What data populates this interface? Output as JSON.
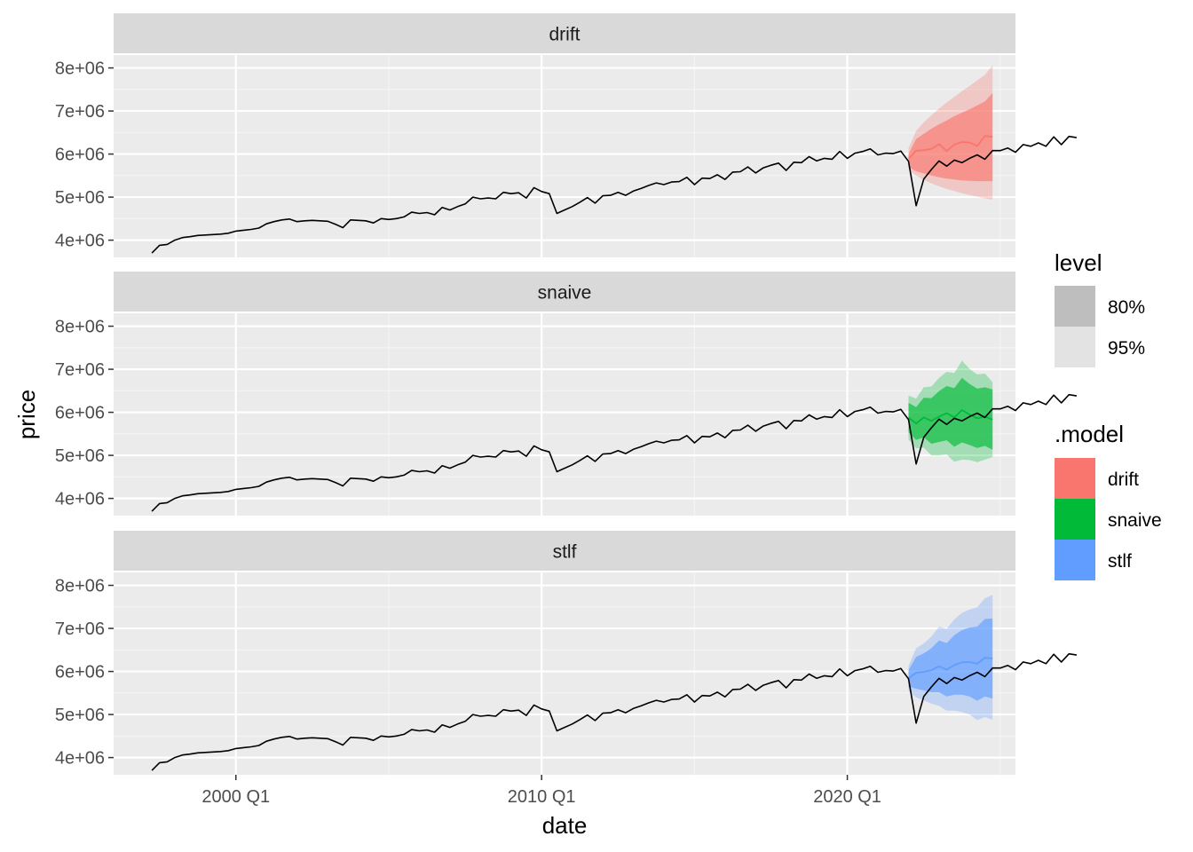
{
  "chart_data": {
    "type": "line",
    "xlabel": "date",
    "ylabel": "price",
    "x_ticks": [
      "2000 Q1",
      "2010 Q1",
      "2020 Q1"
    ],
    "y_ticks": [
      "4e+06",
      "5e+06",
      "6e+06",
      "7e+06",
      "8e+06"
    ],
    "ylim": [
      3600000,
      8300000
    ],
    "xlim": [
      "1996 Q1",
      "2025 Q3"
    ],
    "grid": true,
    "legend_position": "right",
    "panels": [
      {
        "name": "drift",
        "color": "#F8766D"
      },
      {
        "name": "snaive",
        "color": "#00BA38"
      },
      {
        "name": "stlf",
        "color": "#619CFF"
      }
    ],
    "legend": {
      "level": {
        "title": "level",
        "entries": [
          {
            "label": "80%",
            "color": "#bebebe"
          },
          {
            "label": "95%",
            "color": "#e3e3e3"
          }
        ]
      },
      "model": {
        "title": ".model",
        "entries": [
          {
            "label": "drift",
            "color": "#F8766D"
          },
          {
            "label": "snaive",
            "color": "#00BA38"
          },
          {
            "label": "stlf",
            "color": "#619CFF"
          }
        ]
      }
    },
    "series_start": "1997 Q2",
    "history": [
      3700000,
      3880000,
      3900000,
      4000000,
      4060000,
      4080000,
      4110000,
      4120000,
      4130000,
      4140000,
      4160000,
      4210000,
      4230000,
      4250000,
      4280000,
      4380000,
      4430000,
      4470000,
      4490000,
      4430000,
      4450000,
      4460000,
      4450000,
      4440000,
      4370000,
      4290000,
      4470000,
      4460000,
      4450000,
      4400000,
      4500000,
      4480000,
      4500000,
      4540000,
      4650000,
      4620000,
      4640000,
      4590000,
      4760000,
      4700000,
      4780000,
      4840000,
      5000000,
      4960000,
      4980000,
      4960000,
      5110000,
      5080000,
      5100000,
      4980000,
      5220000,
      5130000,
      5080000,
      4620000,
      4700000,
      4780000,
      4880000,
      4990000,
      4860000,
      5030000,
      5040000,
      5110000,
      5040000,
      5140000,
      5200000,
      5270000,
      5330000,
      5290000,
      5350000,
      5360000,
      5460000,
      5290000,
      5440000,
      5430000,
      5520000,
      5410000,
      5580000,
      5590000,
      5700000,
      5560000,
      5680000,
      5740000,
      5790000,
      5620000,
      5810000,
      5800000,
      5940000,
      5840000,
      5900000,
      5880000,
      6060000,
      5900000,
      6020000,
      6060000,
      6120000,
      5980000,
      6020000,
      6010000,
      6070000,
      5830000,
      4800000,
      5420000,
      5640000,
      5840000,
      5720000,
      5860000,
      5800000,
      5900000,
      5980000,
      5880000,
      6080000,
      6080000,
      6140000,
      6040000,
      6220000,
      6180000,
      6260000,
      6180000,
      6400000,
      6220000,
      6410000,
      6380000
    ],
    "forecasts": [
      {
        "name": "drift",
        "mean": [
          5890000,
          6080000,
          6090000,
          6120000,
          6230000,
          6070000,
          6220000,
          6280000,
          6270000,
          6190000,
          6420000,
          6400000
        ],
        "lo80": [
          5700000,
          5600000,
          5550000,
          5500000,
          5460000,
          5430000,
          5410000,
          5390000,
          5380000,
          5370000,
          5370000,
          5370000
        ],
        "hi80": [
          6000000,
          6350000,
          6470000,
          6590000,
          6690000,
          6780000,
          6880000,
          6960000,
          7040000,
          7130000,
          7220000,
          7420000
        ],
        "lo95": [
          5650000,
          5500000,
          5400000,
          5320000,
          5250000,
          5190000,
          5140000,
          5090000,
          5050000,
          5010000,
          4970000,
          4940000
        ],
        "hi95": [
          6130000,
          6540000,
          6740000,
          6900000,
          7060000,
          7200000,
          7330000,
          7460000,
          7580000,
          7710000,
          7840000,
          8060000
        ]
      },
      {
        "name": "snaive",
        "mean": [
          5880000,
          5740000,
          5880000,
          5800000,
          5900000,
          5980000,
          5880000,
          6050000,
          5950000,
          5860000,
          5900000,
          5830000
        ],
        "lo80": [
          5540000,
          5360000,
          5420000,
          5270000,
          5310000,
          5350000,
          5200000,
          5300000,
          5240000,
          5170000,
          5220000,
          5130000
        ],
        "hi80": [
          6220000,
          6120000,
          6340000,
          6330000,
          6490000,
          6610000,
          6560000,
          6800000,
          6660000,
          6550000,
          6580000,
          6530000
        ],
        "lo95": [
          5370000,
          5160000,
          5180000,
          5000000,
          5000000,
          5020000,
          4850000,
          4900000,
          4890000,
          4840000,
          4900000,
          4960000
        ],
        "hi95": [
          6390000,
          6320000,
          6580000,
          6600000,
          6800000,
          6940000,
          6910000,
          7200000,
          7010000,
          6880000,
          6900000,
          6700000
        ]
      },
      {
        "name": "stlf",
        "mean": [
          5840000,
          5970000,
          5990000,
          6030000,
          6120000,
          6040000,
          6150000,
          6210000,
          6220000,
          6180000,
          6320000,
          6300000
        ],
        "lo80": [
          5650000,
          5600000,
          5560000,
          5520000,
          5520000,
          5420000,
          5460000,
          5460000,
          5420000,
          5320000,
          5420000,
          5370000
        ],
        "hi80": [
          6030000,
          6340000,
          6420000,
          6540000,
          6720000,
          6660000,
          6840000,
          6960000,
          7020000,
          7040000,
          7220000,
          7230000
        ],
        "lo95": [
          5550000,
          5400000,
          5330000,
          5250000,
          5200000,
          5090000,
          5090000,
          5060000,
          5000000,
          4870000,
          4940000,
          4880000
        ],
        "hi95": [
          6130000,
          6540000,
          6650000,
          6810000,
          7040000,
          6990000,
          7210000,
          7360000,
          7440000,
          7490000,
          7700000,
          7780000
        ]
      }
    ]
  }
}
